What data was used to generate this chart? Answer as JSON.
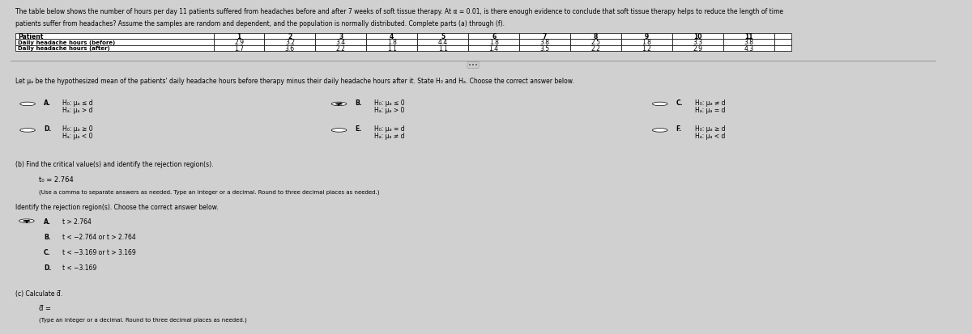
{
  "bg_color": "#d0d0d0",
  "panel_color": "#e8e8e8",
  "text_color": "#000000",
  "title_line1": "The table below shows the number of hours per day 11 patients suffered from headaches before and after 7 weeks of soft tissue therapy. At α = 0.01, is there enough evidence to conclude that soft tissue therapy helps to reduce the length of time",
  "title_line2": "patients suffer from headaches? Assume the samples are random and dependent, and the population is normally distributed. Complete parts (a) through (f).",
  "table_row1_label": "Daily headache hours (before)",
  "table_row1_values": [
    "2.9",
    "3.2",
    "3.4",
    "1.8",
    "4.4",
    "1.8",
    "3.8",
    "2.5",
    "1.8",
    "3.3",
    "3.8"
  ],
  "table_row2_label": "Daily headache hours (after)",
  "table_row2_values": [
    "1.7",
    "3.6",
    "2.2",
    "1.1",
    "1.1",
    "1.4",
    "3.5",
    "2.2",
    "1.2",
    "2.9",
    "4.3"
  ],
  "section_a_text": "Let μₐ be the hypothesized mean of the patients' daily headache hours before therapy minus their daily headache hours after it. State H₀ and Hₐ. Choose the correct answer below.",
  "options_col1": [
    {
      "label": "A.",
      "h0": "H₀: μₐ ≤ d",
      "ha": "Hₐ: μₐ > d",
      "selected": false
    },
    {
      "label": "D.",
      "h0": "H₀: μₐ ≥ 0",
      "ha": "Hₐ: μₐ < 0",
      "selected": false
    }
  ],
  "options_col2": [
    {
      "label": "B.",
      "h0": "H₀: μₐ ≤ 0",
      "ha": "Hₐ: μₐ > 0",
      "selected": true
    },
    {
      "label": "E.",
      "h0": "H₀: μₐ = d",
      "ha": "Hₐ: μₐ ≠ d",
      "selected": false
    }
  ],
  "options_col3": [
    {
      "label": "C.",
      "h0": "H₀: μₐ ≠ d",
      "ha": "Hₐ: μₐ = d",
      "selected": false
    },
    {
      "label": "F.",
      "h0": "H₀: μₐ ≥ d",
      "ha": "Hₐ: μₐ < d",
      "selected": false
    }
  ],
  "section_b_label": "(b) Find the critical value(s) and identify the rejection region(s).",
  "critical_value_text": "t₀ = 2.764",
  "critical_value_note": "(Use a comma to separate answers as needed. Type an integer or a decimal. Round to three decimal places as needed.)",
  "rejection_label": "Identify the rejection region(s). Choose the correct answer below.",
  "rejection_options": [
    {
      "label": "A.",
      "text": "t > 2.764",
      "selected": true
    },
    {
      "label": "B.",
      "text": "t < −2.764 or t > 2.764",
      "selected": false
    },
    {
      "label": "C.",
      "text": "t < −3.169 or t > 3.169",
      "selected": false
    },
    {
      "label": "D.",
      "text": "t < −3.169",
      "selected": false
    }
  ],
  "section_c_label": "(c) Calculate d̅.",
  "section_c_input": "d̅ =",
  "section_c_note": "(Type an integer or a decimal. Round to three decimal places as needed.)"
}
